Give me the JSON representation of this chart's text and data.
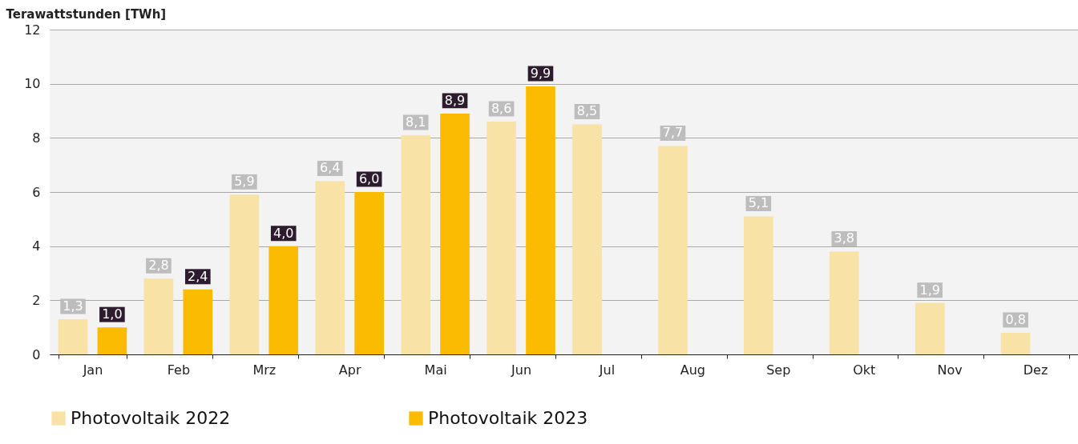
{
  "chart_data": {
    "type": "bar",
    "ylabel": "Terawattstunden [TWh]",
    "categories": [
      "Jan",
      "Feb",
      "Mrz",
      "Apr",
      "Mai",
      "Jun",
      "Jul",
      "Aug",
      "Sep",
      "Okt",
      "Nov",
      "Dez"
    ],
    "series": [
      {
        "name": "Photovoltaik 2022",
        "color": "#f9e2a5",
        "values": [
          1.3,
          2.8,
          5.9,
          6.4,
          8.1,
          8.6,
          8.5,
          7.7,
          5.1,
          3.8,
          1.9,
          0.8
        ],
        "value_labels": [
          "1,3",
          "2,8",
          "5,9",
          "6,4",
          "8,1",
          "8,6",
          "8,5",
          "7,7",
          "5,1",
          "3,8",
          "1,9",
          "0,8"
        ]
      },
      {
        "name": "Photovoltaik 2023",
        "color": "#fbbb00",
        "values": [
          1.0,
          2.4,
          4.0,
          6.0,
          8.9,
          9.9,
          null,
          null,
          null,
          null,
          null,
          null
        ],
        "value_labels": [
          "1,0",
          "2,4",
          "4,0",
          "6,0",
          "8,9",
          "9,9",
          null,
          null,
          null,
          null,
          null,
          null
        ]
      }
    ],
    "ylim": [
      0,
      12
    ],
    "yticks": [
      0,
      2,
      4,
      6,
      8,
      10,
      12
    ],
    "grid": "y",
    "legend": "bottom"
  }
}
